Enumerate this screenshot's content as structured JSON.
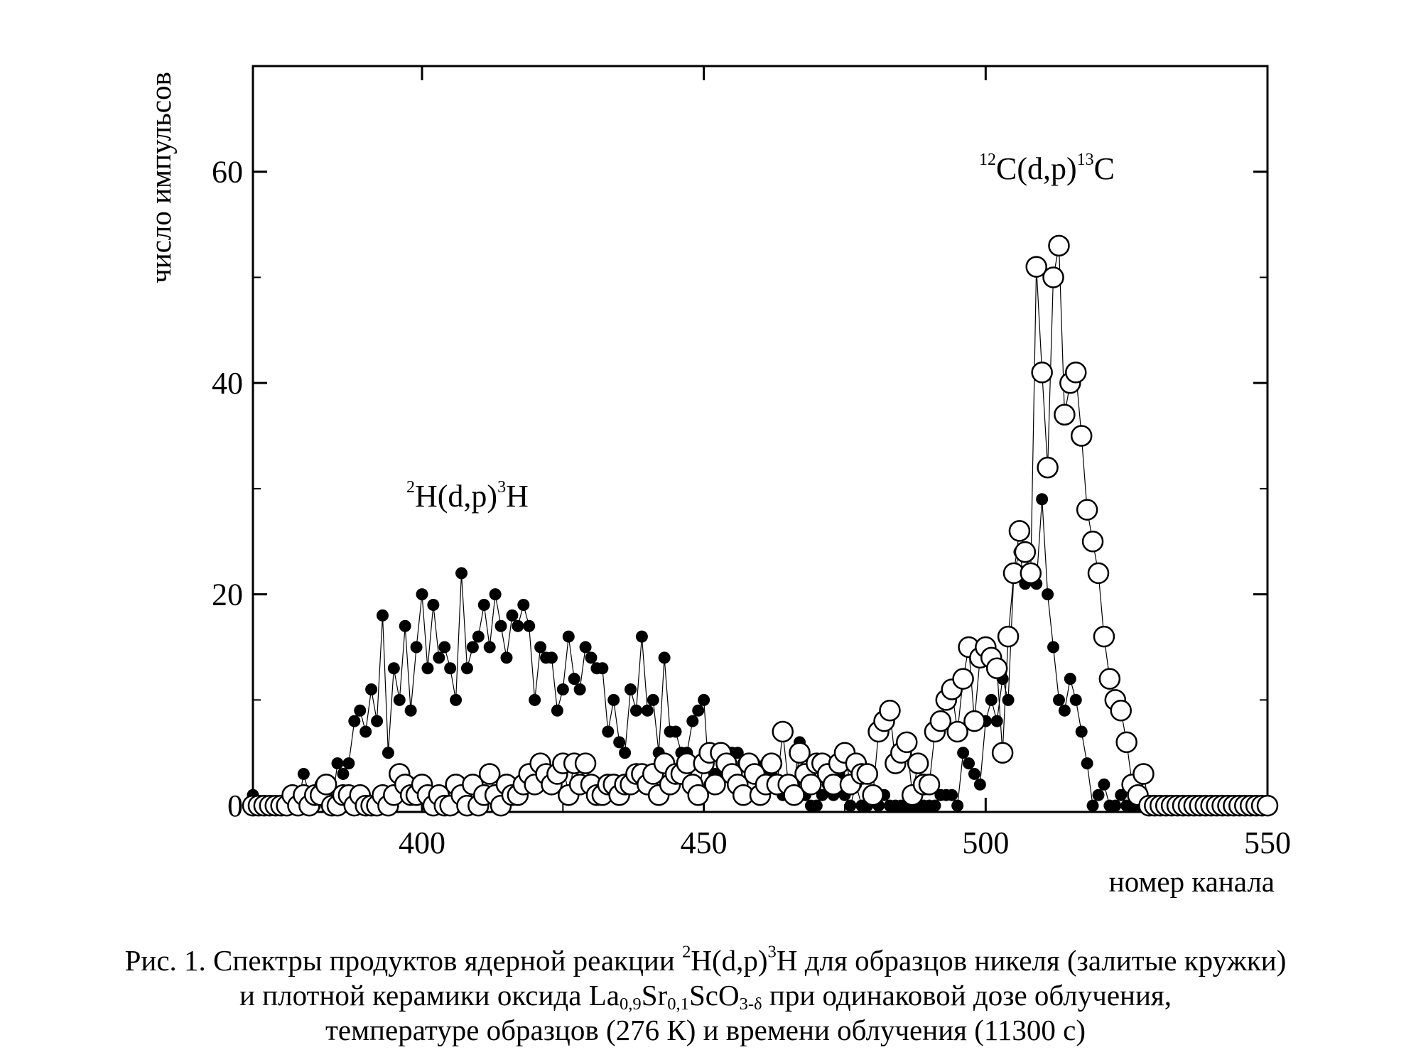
{
  "chart_data": {
    "type": "scatter",
    "xlabel": "номер канала",
    "ylabel": "число импульсов",
    "xlim": [
      370,
      550
    ],
    "ylim": [
      -0.6,
      70
    ],
    "xticks": [
      400,
      450,
      500,
      550
    ],
    "yticks": [
      0,
      20,
      40,
      60
    ],
    "grid": false,
    "annotations": [
      {
        "text": "²H(d,p)³H",
        "x": 404,
        "y": 29
      },
      {
        "text": "¹²C(d,p)¹³C",
        "x": 512,
        "y": 59
      }
    ],
    "series": [
      {
        "name": "залитые кружки",
        "marker": "filled-circle",
        "x_start": 370,
        "values": [
          1,
          0,
          0,
          0,
          0,
          0,
          0,
          0,
          0,
          3,
          1,
          0,
          2,
          1,
          0,
          4,
          3,
          4,
          8,
          9,
          7,
          11,
          8,
          18,
          5,
          13,
          10,
          17,
          9,
          15,
          20,
          13,
          19,
          14,
          15,
          13,
          10,
          22,
          13,
          15,
          16,
          19,
          15,
          20,
          17,
          14,
          18,
          17,
          19,
          17,
          10,
          15,
          14,
          14,
          9,
          11,
          16,
          12,
          11,
          15,
          14,
          13,
          13,
          7,
          10,
          6,
          5,
          11,
          9,
          16,
          9,
          10,
          5,
          14,
          7,
          7,
          5,
          5,
          8,
          9,
          10,
          2,
          3,
          3,
          4,
          5,
          5,
          4,
          4,
          4,
          3,
          4,
          3,
          2,
          1,
          1,
          2,
          6,
          1,
          0,
          0,
          1,
          2,
          1,
          3,
          1,
          0,
          2,
          0,
          0,
          1,
          0,
          1,
          0,
          0,
          0,
          0,
          0,
          0,
          0,
          0,
          0,
          1,
          1,
          1,
          0,
          5,
          4,
          3,
          2,
          8,
          10,
          8,
          12,
          10,
          22,
          24,
          21,
          22,
          21,
          29,
          20,
          15,
          10,
          9,
          12,
          10,
          7,
          4,
          0,
          1,
          2,
          0,
          0,
          1,
          0,
          0,
          0,
          0,
          0,
          0,
          0,
          0,
          0,
          0,
          0,
          0,
          0,
          0,
          0,
          0,
          0,
          0,
          0,
          0,
          0,
          0,
          0,
          0,
          0,
          0
        ]
      },
      {
        "name": "открытые кружки",
        "marker": "open-circle",
        "x_start": 370,
        "values": [
          0,
          0,
          0,
          0,
          0,
          0,
          0,
          1,
          0,
          1,
          0,
          1,
          1,
          2,
          0,
          0,
          1,
          1,
          0,
          1,
          0,
          0,
          0,
          1,
          0,
          1,
          3,
          2,
          1,
          1,
          2,
          1,
          0,
          1,
          0,
          0,
          2,
          1,
          0,
          2,
          0,
          1,
          3,
          1,
          0,
          2,
          1,
          1,
          2,
          3,
          2,
          4,
          3,
          2,
          3,
          4,
          1,
          4,
          2,
          4,
          2,
          1,
          1,
          2,
          2,
          1,
          2,
          2,
          3,
          3,
          2,
          3,
          1,
          4,
          2,
          3,
          3,
          4,
          2,
          1,
          4,
          5,
          2,
          5,
          4,
          3,
          2,
          1,
          4,
          3,
          1,
          2,
          4,
          2,
          7,
          2,
          1,
          5,
          3,
          2,
          4,
          4,
          3,
          2,
          4,
          5,
          2,
          4,
          3,
          3,
          1,
          7,
          8,
          9,
          4,
          5,
          6,
          1,
          4,
          2,
          2,
          7,
          8,
          10,
          11,
          7,
          12,
          15,
          8,
          14,
          15,
          14,
          13,
          5,
          16,
          22,
          26,
          24,
          22,
          51,
          41,
          32,
          50,
          53,
          37,
          40,
          41,
          35,
          28,
          25,
          22,
          16,
          12,
          10,
          9,
          6,
          2,
          1,
          3,
          0,
          0,
          0,
          0,
          0,
          0,
          0,
          0,
          0,
          0,
          0,
          0,
          0,
          0,
          0,
          0,
          0,
          0,
          0,
          0,
          0,
          0
        ]
      }
    ]
  },
  "caption": {
    "line1_prefix": "Рис. 1. Спектры продуктов ядерной реакции ",
    "line1_reaction": {
      "sup1": "2",
      "part1": "H(d,p)",
      "sup2": "3",
      "part2": "H"
    },
    "line1_suffix": " для образцов никеля (залитые кружки)",
    "line2_prefix": "и плотной керамики оксида ",
    "line2_formula": {
      "la": "La",
      "la_sub": "0,9",
      "sr": "Sr",
      "sr_sub": "0,1",
      "sco": "ScO",
      "o_sub": "3-δ"
    },
    "line2_suffix": " при одинаковой дозе облучения,",
    "line3": "температуре образцов (276 К) и времени облучения (11300 с)"
  }
}
